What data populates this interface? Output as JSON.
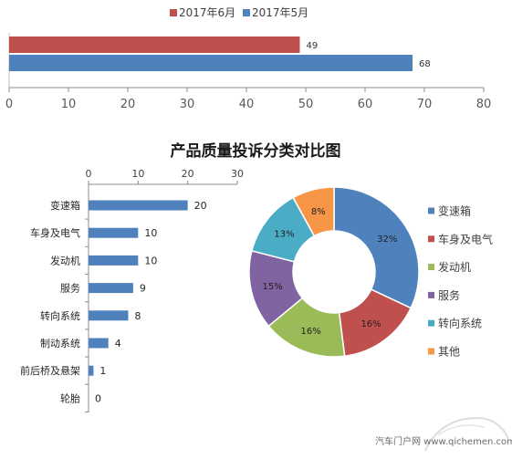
{
  "chart_data": [
    {
      "type": "bar",
      "orientation": "horizontal",
      "series": [
        {
          "name": "2017年6月",
          "values": [
            49
          ],
          "color": "#c0504d"
        },
        {
          "name": "2017年5月",
          "values": [
            68
          ],
          "color": "#4f81bd"
        }
      ],
      "xlim": [
        0,
        80
      ],
      "xticks": [
        0,
        10,
        20,
        30,
        40,
        50,
        60,
        70,
        80
      ],
      "legend_position": "top",
      "grid": false
    },
    {
      "type": "bar",
      "orientation": "horizontal",
      "title": "产品质量投诉分类对比图",
      "categories": [
        "变速箱",
        "车身及电气",
        "发动机",
        "服务",
        "转向系统",
        "制动系统",
        "前后桥及悬架",
        "轮胎"
      ],
      "values": [
        20,
        10,
        10,
        9,
        8,
        4,
        1,
        0
      ],
      "color": "#4f81bd",
      "xlim": [
        0,
        30
      ],
      "xticks": [
        0,
        10,
        20,
        30
      ],
      "grid": false
    },
    {
      "type": "pie",
      "donut": true,
      "categories": [
        "变速箱",
        "车身及电气",
        "发动机",
        "服务",
        "转向系统",
        "其他"
      ],
      "values": [
        32,
        16,
        16,
        15,
        13,
        8
      ],
      "labels": [
        "32%",
        "16%",
        "16%",
        "15%",
        "13%",
        "8%"
      ],
      "colors": [
        "#4f81bd",
        "#c0504d",
        "#9bbb59",
        "#8064a2",
        "#4bacc6",
        "#f79646"
      ],
      "legend_position": "right"
    }
  ],
  "watermark": {
    "text": "汽车门户网 www.qichemen.com"
  }
}
